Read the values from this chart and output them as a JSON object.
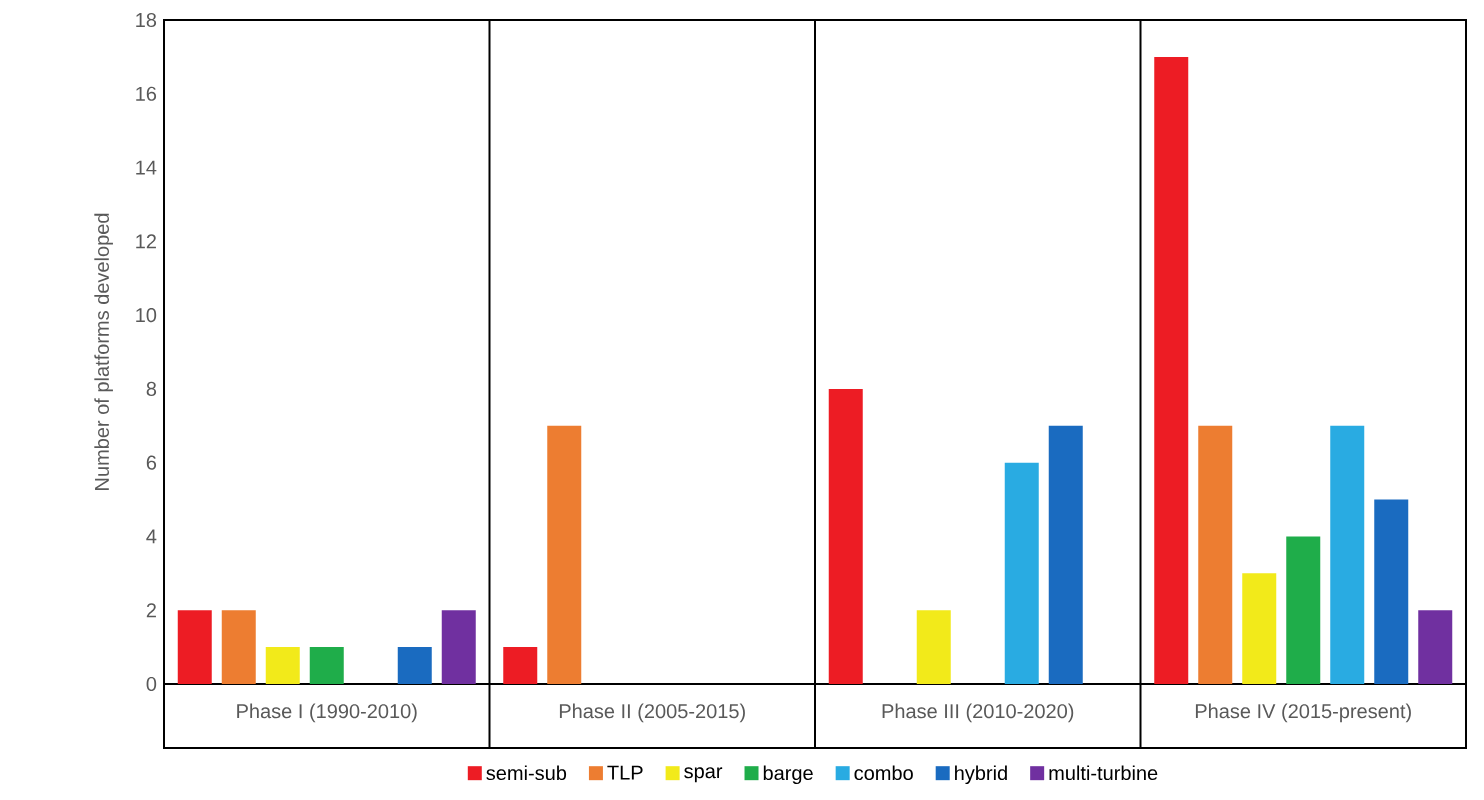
{
  "chart_data": {
    "type": "bar",
    "ylabel": "Number of platforms developed",
    "categories": [
      "Phase I (1990-2010)",
      "Phase II (2005-2015)",
      "Phase III (2010-2020)",
      "Phase IV (2015-present)"
    ],
    "series": [
      {
        "name": "semi-sub",
        "color": "#ed1c24",
        "values": [
          2,
          1,
          8,
          17
        ]
      },
      {
        "name": "TLP",
        "color": "#ed7d31",
        "values": [
          2,
          7,
          0,
          7
        ]
      },
      {
        "name": "spar",
        "color": "#f2ea1a",
        "values": [
          1,
          0,
          2,
          3
        ]
      },
      {
        "name": "barge",
        "color": "#1fad4a",
        "values": [
          1,
          0,
          0,
          4
        ]
      },
      {
        "name": "combo",
        "color": "#29abe2",
        "values": [
          0,
          0,
          6,
          7
        ]
      },
      {
        "name": "hybrid",
        "color": "#1a6bc0",
        "values": [
          1,
          0,
          7,
          5
        ]
      },
      {
        "name": "multi-turbine",
        "color": "#7030a0",
        "values": [
          2,
          0,
          0,
          2
        ]
      }
    ],
    "ylim": [
      0,
      18
    ],
    "yticks": [
      0,
      2,
      4,
      6,
      8,
      10,
      12,
      14,
      16,
      18
    ],
    "grid": false,
    "legend": "bottom"
  }
}
